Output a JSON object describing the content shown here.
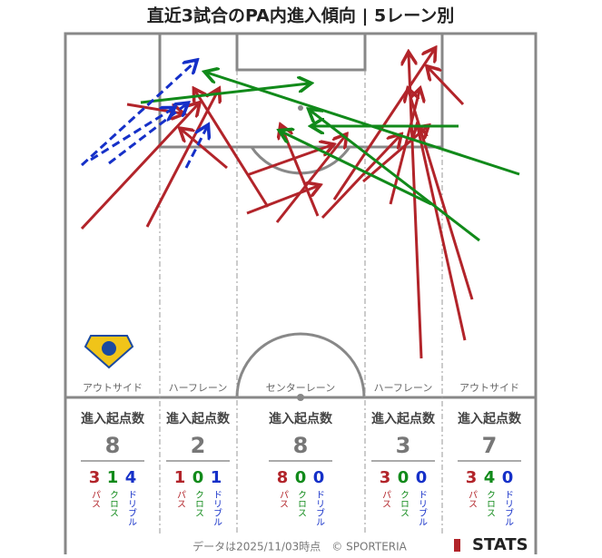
{
  "header": {
    "title": "直近3試合のPA内進入傾向 | 5レーン別"
  },
  "lanes": [
    {
      "name": "アウトサイド",
      "heading": "進入起点数",
      "total": 8,
      "counts": [
        {
          "value": 3,
          "label": "パス"
        },
        {
          "value": 1,
          "label": "クロス"
        },
        {
          "value": 4,
          "label": "ドリブル"
        }
      ]
    },
    {
      "name": "ハーフレーン",
      "heading": "進入起点数",
      "total": 2,
      "counts": [
        {
          "value": 1,
          "label": "パス"
        },
        {
          "value": 0,
          "label": "クロス"
        },
        {
          "value": 1,
          "label": "ドリブル"
        }
      ]
    },
    {
      "name": "センターレーン",
      "heading": "進入起点数",
      "total": 8,
      "counts": [
        {
          "value": 8,
          "label": "パス"
        },
        {
          "value": 0,
          "label": "クロス"
        },
        {
          "value": 0,
          "label": "ドリブル"
        }
      ]
    },
    {
      "name": "ハーフレーン",
      "heading": "進入起点数",
      "total": 3,
      "counts": [
        {
          "value": 3,
          "label": "パス"
        },
        {
          "value": 0,
          "label": "クロス"
        },
        {
          "value": 0,
          "label": "ドリブル"
        }
      ]
    },
    {
      "name": "アウトサイド",
      "heading": "進入起点数",
      "total": 7,
      "counts": [
        {
          "value": 3,
          "label": "パス"
        },
        {
          "value": 4,
          "label": "クロス"
        },
        {
          "value": 0,
          "label": "ドリブル"
        }
      ]
    }
  ],
  "footer": {
    "note": "データは2025/11/03時点　© SPORTERIA",
    "logo": "STATS"
  }
}
